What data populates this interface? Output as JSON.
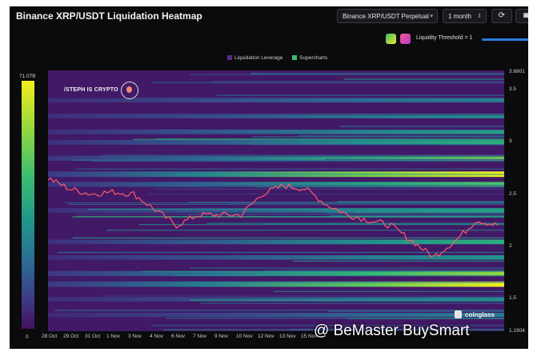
{
  "header": {
    "title": "Binance XRP/USDT Liquidation Heatmap",
    "pair_select": "Binance XRP/USDT Perpetual",
    "range_select": "1 month",
    "refresh_icon": "refresh-icon",
    "camera_icon": "camera-icon"
  },
  "threshold": {
    "label": "Liquidity Threshold = 1"
  },
  "legend": {
    "items": [
      "Liquidation Leverage",
      "Supercharts"
    ],
    "colors": [
      "#5a2a8c",
      "#3fb874"
    ]
  },
  "colorbar": {
    "max_label": "71.07B",
    "min_label": "0"
  },
  "watermarks": {
    "author": "/STEPH IS CRYPTO",
    "brand": "coinglass",
    "overlay": "@ BeMaster BuySmart"
  },
  "colors": {
    "background": "#0b0b0d",
    "heat_low": "#43105e",
    "heat_high": "#f4ee1d",
    "price_line": "#ff5a6e"
  },
  "chart_data": {
    "type": "heatmap",
    "title": "Binance XRP/USDT Liquidation Heatmap",
    "x_ticks": [
      "28 Oct",
      "29 Oct",
      "31 Oct",
      "1 Nov",
      "3 Nov",
      "4 Nov",
      "6 Nov",
      "7 Nov",
      "9 Nov",
      "10 Nov",
      "12 Nov",
      "13 Nov",
      "15 Nov"
    ],
    "y_ticks": [
      "3.6801",
      "3.5",
      "3",
      "2.5",
      "2",
      "1.5",
      "1.1904"
    ],
    "ylim": [
      1.1904,
      3.6801
    ],
    "colorbar_range": [
      0,
      "71.07B"
    ],
    "price_series": {
      "x_days": [
        0,
        1,
        2,
        3,
        4,
        5,
        6,
        7,
        8,
        9,
        10,
        11,
        12,
        13,
        14,
        15,
        16,
        17,
        18,
        19,
        20,
        21
      ],
      "price": [
        2.65,
        2.55,
        2.5,
        2.52,
        2.5,
        2.35,
        2.2,
        2.3,
        2.3,
        2.3,
        2.5,
        2.58,
        2.55,
        2.4,
        2.3,
        2.25,
        2.2,
        2.05,
        1.9,
        2.05,
        2.25,
        2.2
      ]
    },
    "bands": [
      {
        "price": 3.4,
        "intensity": 0.45
      },
      {
        "price": 3.25,
        "intensity": 0.5
      },
      {
        "price": 3.1,
        "intensity": 0.55
      },
      {
        "price": 3.0,
        "intensity": 0.6
      },
      {
        "price": 2.85,
        "intensity": 0.75
      },
      {
        "price": 2.7,
        "intensity": 0.95
      },
      {
        "price": 2.6,
        "intensity": 0.7
      },
      {
        "price": 2.35,
        "intensity": 0.55
      },
      {
        "price": 2.05,
        "intensity": 0.6
      },
      {
        "price": 1.9,
        "intensity": 0.5
      },
      {
        "price": 1.75,
        "intensity": 0.8
      },
      {
        "price": 1.65,
        "intensity": 0.9
      },
      {
        "price": 1.5,
        "intensity": 0.45
      },
      {
        "price": 1.35,
        "intensity": 0.4
      }
    ]
  }
}
